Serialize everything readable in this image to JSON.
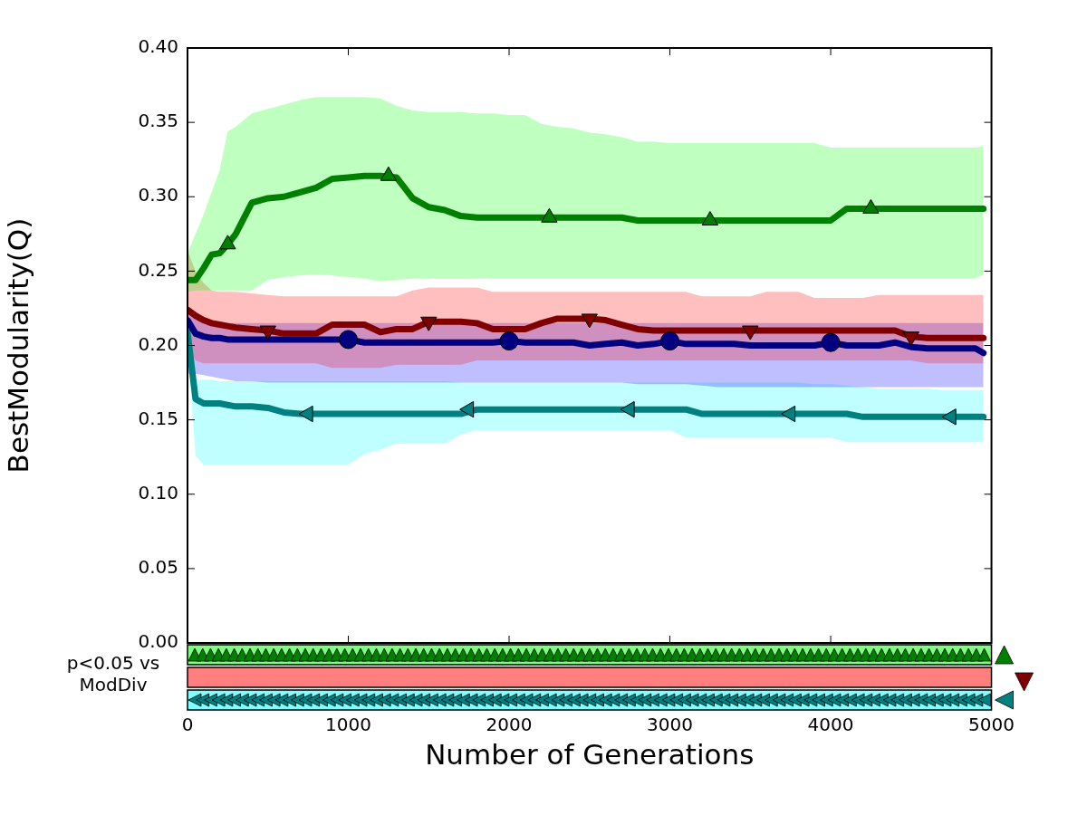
{
  "chart_data": {
    "type": "line",
    "xlabel": "Number of Generations",
    "ylabel": "BestModularity(Q)",
    "xlim": [
      0,
      5000
    ],
    "xticks": [
      0,
      1000,
      2000,
      3000,
      4000,
      5000
    ],
    "ylim": [
      0,
      0.4
    ],
    "yticks": [
      {
        "value": 0,
        "label": "0.00"
      },
      {
        "value": 0.05,
        "label": "0.05"
      },
      {
        "value": 0.1,
        "label": "0.10"
      },
      {
        "value": 0.15,
        "label": "0.15"
      },
      {
        "value": 0.2,
        "label": "0.20"
      },
      {
        "value": 0.25,
        "label": "0.25"
      },
      {
        "value": 0.3,
        "label": "0.30"
      },
      {
        "value": 0.35,
        "label": "0.35"
      },
      {
        "value": 0.4,
        "label": "0.40"
      }
    ],
    "annotations": [
      "p<0.05 vs ModDiv"
    ],
    "x": [
      0,
      50,
      100,
      150,
      200,
      250,
      300,
      400,
      500,
      600,
      700,
      800,
      900,
      1000,
      1100,
      1200,
      1300,
      1400,
      1500,
      1600,
      1700,
      1800,
      1900,
      2000,
      2100,
      2200,
      2300,
      2400,
      2500,
      2600,
      2700,
      2800,
      2900,
      3000,
      3100,
      3200,
      3300,
      3400,
      3500,
      3600,
      3700,
      3800,
      3900,
      4000,
      4100,
      4200,
      4300,
      4400,
      4500,
      4600,
      4700,
      4800,
      4900,
      4950
    ],
    "marker": "none",
    "line_style": "solid",
    "legend": false,
    "series": [
      {
        "type": "line",
        "color": "#008000",
        "values": [
          0.244,
          0.244,
          0.252,
          0.261,
          0.262,
          0.268,
          0.275,
          0.296,
          0.299,
          0.3,
          0.303,
          0.306,
          0.312,
          0.313,
          0.314,
          0.314,
          0.313,
          0.299,
          0.293,
          0.291,
          0.287,
          0.286,
          0.286,
          0.286,
          0.286,
          0.286,
          0.286,
          0.286,
          0.286,
          0.286,
          0.286,
          0.284,
          0.284,
          0.284,
          0.284,
          0.284,
          0.284,
          0.284,
          0.284,
          0.284,
          0.284,
          0.284,
          0.284,
          0.284,
          0.292,
          0.292,
          0.292,
          0.292,
          0.292,
          0.292,
          0.292,
          0.292,
          0.292,
          0.292
        ],
        "upper": [
          0.262,
          0.275,
          0.288,
          0.303,
          0.318,
          0.344,
          0.347,
          0.356,
          0.359,
          0.362,
          0.365,
          0.367,
          0.367,
          0.367,
          0.367,
          0.366,
          0.361,
          0.358,
          0.357,
          0.357,
          0.357,
          0.356,
          0.356,
          0.355,
          0.355,
          0.349,
          0.347,
          0.346,
          0.343,
          0.342,
          0.34,
          0.337,
          0.337,
          0.336,
          0.336,
          0.336,
          0.336,
          0.336,
          0.336,
          0.336,
          0.336,
          0.336,
          0.336,
          0.333,
          0.333,
          0.333,
          0.333,
          0.333,
          0.333,
          0.333,
          0.333,
          0.333,
          0.333,
          0.334
        ],
        "lower": [
          0.236,
          0.237,
          0.237,
          0.237,
          0.237,
          0.237,
          0.237,
          0.237,
          0.244,
          0.246,
          0.247,
          0.248,
          0.247,
          0.246,
          0.245,
          0.243,
          0.244,
          0.245,
          0.245,
          0.245,
          0.245,
          0.245,
          0.245,
          0.245,
          0.245,
          0.245,
          0.245,
          0.245,
          0.245,
          0.245,
          0.245,
          0.245,
          0.245,
          0.245,
          0.245,
          0.245,
          0.245,
          0.245,
          0.245,
          0.245,
          0.245,
          0.245,
          0.245,
          0.245,
          0.245,
          0.245,
          0.245,
          0.245,
          0.245,
          0.245,
          0.245,
          0.245,
          0.245,
          0.248
        ]
      },
      {
        "type": "line",
        "color": "#800000",
        "values": [
          0.224,
          0.22,
          0.217,
          0.215,
          0.214,
          0.213,
          0.212,
          0.211,
          0.21,
          0.208,
          0.208,
          0.208,
          0.214,
          0.214,
          0.214,
          0.209,
          0.211,
          0.211,
          0.216,
          0.216,
          0.216,
          0.215,
          0.211,
          0.211,
          0.211,
          0.215,
          0.218,
          0.218,
          0.218,
          0.217,
          0.214,
          0.211,
          0.21,
          0.21,
          0.21,
          0.21,
          0.21,
          0.21,
          0.21,
          0.21,
          0.21,
          0.21,
          0.21,
          0.21,
          0.21,
          0.21,
          0.21,
          0.21,
          0.206,
          0.205,
          0.205,
          0.205,
          0.205,
          0.205
        ],
        "upper": [
          0.264,
          0.25,
          0.242,
          0.237,
          0.236,
          0.236,
          0.236,
          0.235,
          0.234,
          0.233,
          0.233,
          0.233,
          0.233,
          0.233,
          0.233,
          0.233,
          0.233,
          0.237,
          0.239,
          0.239,
          0.239,
          0.239,
          0.236,
          0.236,
          0.236,
          0.236,
          0.236,
          0.236,
          0.236,
          0.236,
          0.236,
          0.236,
          0.236,
          0.236,
          0.236,
          0.233,
          0.233,
          0.233,
          0.233,
          0.236,
          0.236,
          0.236,
          0.232,
          0.232,
          0.232,
          0.232,
          0.234,
          0.234,
          0.234,
          0.234,
          0.234,
          0.234,
          0.234,
          0.234
        ],
        "lower": [
          0.2,
          0.19,
          0.188,
          0.188,
          0.188,
          0.188,
          0.188,
          0.188,
          0.188,
          0.188,
          0.188,
          0.188,
          0.185,
          0.185,
          0.185,
          0.185,
          0.187,
          0.187,
          0.187,
          0.187,
          0.187,
          0.19,
          0.19,
          0.19,
          0.19,
          0.19,
          0.19,
          0.19,
          0.19,
          0.19,
          0.19,
          0.19,
          0.19,
          0.19,
          0.19,
          0.19,
          0.19,
          0.19,
          0.19,
          0.19,
          0.19,
          0.19,
          0.19,
          0.19,
          0.19,
          0.19,
          0.19,
          0.19,
          0.19,
          0.188,
          0.188,
          0.188,
          0.188,
          0.188
        ]
      },
      {
        "type": "line",
        "color": "#000080",
        "values": [
          0.217,
          0.208,
          0.206,
          0.205,
          0.205,
          0.204,
          0.204,
          0.204,
          0.204,
          0.204,
          0.204,
          0.204,
          0.204,
          0.204,
          0.202,
          0.202,
          0.202,
          0.202,
          0.202,
          0.202,
          0.202,
          0.202,
          0.202,
          0.203,
          0.202,
          0.202,
          0.202,
          0.202,
          0.2,
          0.201,
          0.202,
          0.2,
          0.201,
          0.203,
          0.201,
          0.201,
          0.201,
          0.201,
          0.2,
          0.2,
          0.2,
          0.2,
          0.2,
          0.202,
          0.2,
          0.2,
          0.2,
          0.202,
          0.199,
          0.198,
          0.198,
          0.198,
          0.198,
          0.195
        ],
        "upper": [
          0.225,
          0.218,
          0.215,
          0.215,
          0.215,
          0.215,
          0.215,
          0.215,
          0.215,
          0.215,
          0.215,
          0.215,
          0.215,
          0.215,
          0.215,
          0.215,
          0.215,
          0.215,
          0.215,
          0.215,
          0.215,
          0.215,
          0.215,
          0.215,
          0.215,
          0.215,
          0.215,
          0.215,
          0.215,
          0.215,
          0.215,
          0.215,
          0.215,
          0.215,
          0.215,
          0.215,
          0.215,
          0.215,
          0.215,
          0.215,
          0.215,
          0.215,
          0.215,
          0.215,
          0.215,
          0.215,
          0.215,
          0.215,
          0.215,
          0.215,
          0.215,
          0.215,
          0.215,
          0.215
        ],
        "lower": [
          0.181,
          0.181,
          0.18,
          0.179,
          0.178,
          0.177,
          0.176,
          0.176,
          0.175,
          0.175,
          0.175,
          0.175,
          0.175,
          0.175,
          0.175,
          0.175,
          0.175,
          0.175,
          0.175,
          0.175,
          0.175,
          0.175,
          0.175,
          0.175,
          0.175,
          0.175,
          0.175,
          0.175,
          0.175,
          0.175,
          0.175,
          0.174,
          0.174,
          0.174,
          0.174,
          0.173,
          0.172,
          0.172,
          0.172,
          0.172,
          0.172,
          0.172,
          0.172,
          0.172,
          0.172,
          0.172,
          0.172,
          0.172,
          0.172,
          0.172,
          0.172,
          0.172,
          0.172,
          0.172
        ]
      },
      {
        "type": "line",
        "color": "#008080",
        "values": [
          0.209,
          0.164,
          0.161,
          0.161,
          0.161,
          0.16,
          0.159,
          0.159,
          0.158,
          0.155,
          0.154,
          0.154,
          0.154,
          0.154,
          0.154,
          0.154,
          0.154,
          0.154,
          0.154,
          0.154,
          0.154,
          0.157,
          0.157,
          0.157,
          0.157,
          0.157,
          0.157,
          0.157,
          0.157,
          0.157,
          0.157,
          0.157,
          0.157,
          0.157,
          0.157,
          0.154,
          0.154,
          0.154,
          0.154,
          0.154,
          0.154,
          0.154,
          0.154,
          0.154,
          0.154,
          0.152,
          0.152,
          0.152,
          0.152,
          0.152,
          0.152,
          0.152,
          0.152,
          0.152
        ],
        "upper": [
          0.21,
          0.177,
          0.177,
          0.177,
          0.176,
          0.176,
          0.176,
          0.176,
          0.176,
          0.176,
          0.176,
          0.176,
          0.176,
          0.176,
          0.176,
          0.176,
          0.176,
          0.176,
          0.176,
          0.176,
          0.175,
          0.175,
          0.175,
          0.175,
          0.175,
          0.175,
          0.175,
          0.175,
          0.175,
          0.175,
          0.175,
          0.175,
          0.175,
          0.175,
          0.175,
          0.175,
          0.175,
          0.175,
          0.175,
          0.175,
          0.175,
          0.175,
          0.174,
          0.174,
          0.173,
          0.172,
          0.171,
          0.171,
          0.171,
          0.171,
          0.17,
          0.17,
          0.17,
          0.17
        ],
        "lower": [
          0.2,
          0.126,
          0.12,
          0.12,
          0.12,
          0.12,
          0.12,
          0.12,
          0.12,
          0.12,
          0.12,
          0.12,
          0.12,
          0.12,
          0.127,
          0.13,
          0.134,
          0.134,
          0.134,
          0.134,
          0.14,
          0.143,
          0.143,
          0.143,
          0.143,
          0.143,
          0.143,
          0.143,
          0.143,
          0.143,
          0.143,
          0.143,
          0.143,
          0.143,
          0.138,
          0.138,
          0.138,
          0.138,
          0.138,
          0.138,
          0.138,
          0.138,
          0.138,
          0.138,
          0.135,
          0.135,
          0.135,
          0.135,
          0.135,
          0.135,
          0.135,
          0.135,
          0.135,
          0.135
        ]
      },
      {
        "type": "scatter",
        "color": "#008000",
        "marker": "triangle",
        "x": [
          250,
          1250,
          2250,
          3250,
          4250
        ],
        "values": [
          0.268,
          0.314,
          0.286,
          0.284,
          0.292
        ]
      },
      {
        "type": "scatter",
        "color": "#800000",
        "marker": "triangle-down",
        "x": [
          500,
          1500,
          2500,
          3500,
          4500
        ],
        "values": [
          0.21,
          0.216,
          0.218,
          0.21,
          0.206
        ]
      },
      {
        "type": "scatter",
        "color": "#000080",
        "marker": "circle",
        "x": [
          1000,
          2000,
          3000,
          4000
        ],
        "values": [
          0.204,
          0.203,
          0.203,
          0.202
        ]
      },
      {
        "type": "scatter",
        "color": "#008080",
        "marker": "triangle-left",
        "x": [
          750,
          1750,
          2750,
          3750,
          4750
        ],
        "values": [
          0.154,
          0.157,
          0.157,
          0.154,
          0.152
        ]
      }
    ]
  }
}
